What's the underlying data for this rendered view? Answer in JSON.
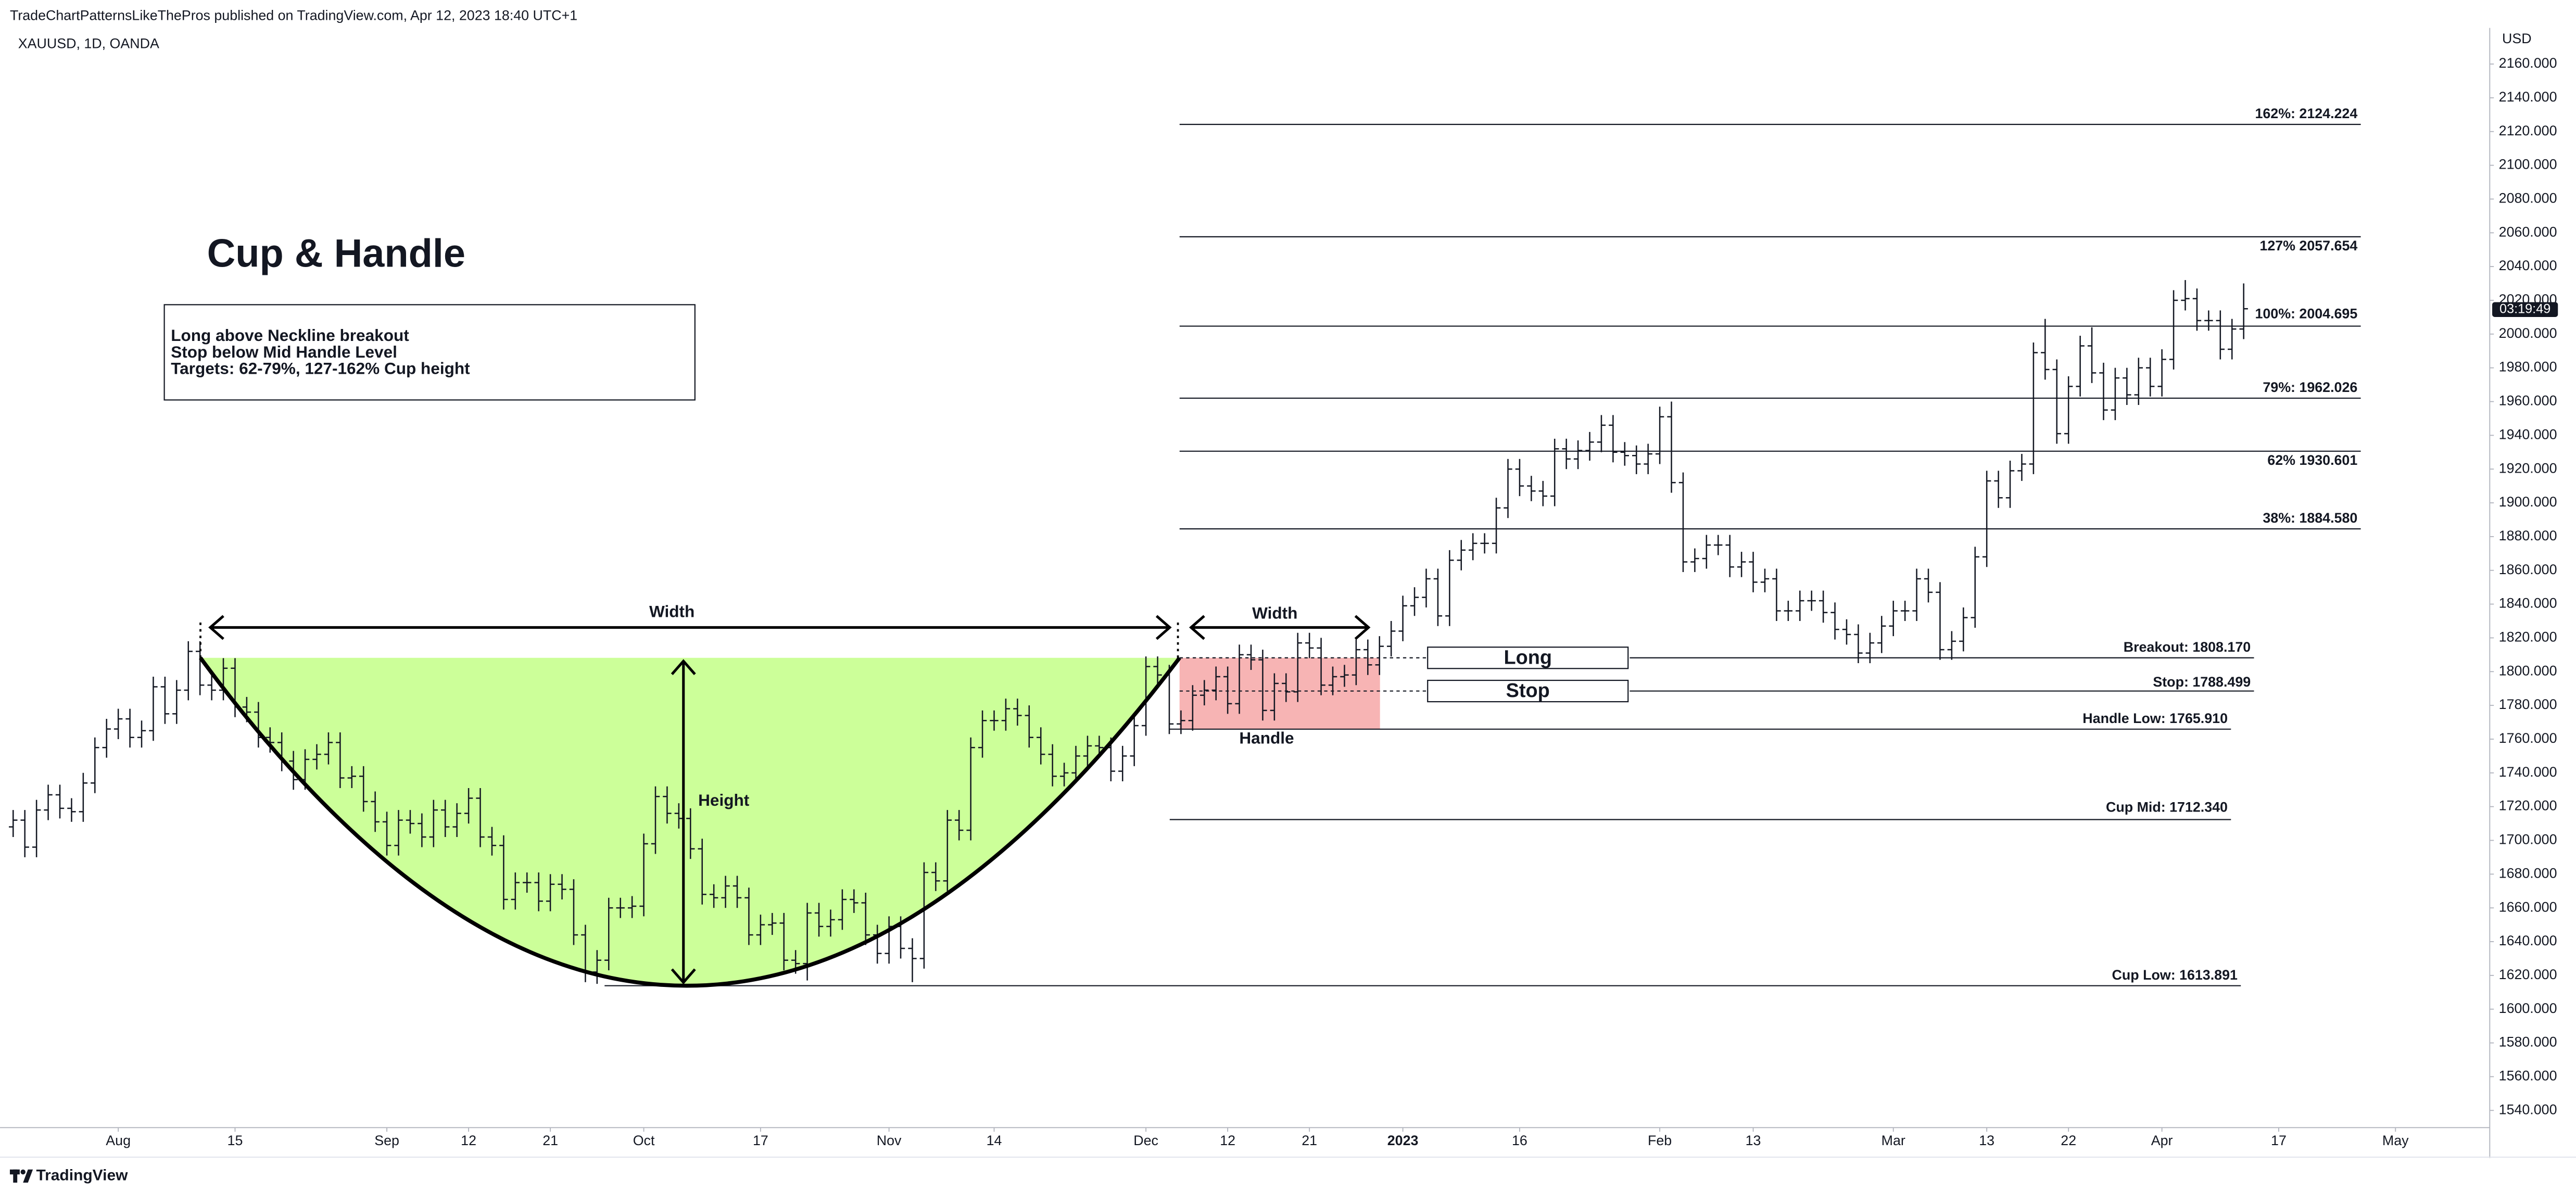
{
  "header": {
    "publisher": "TradeChartPatternsLikeThePros published on TradingView.com, Apr 12, 2023 18:40 UTC+1",
    "symbol": "XAUUSD, 1D, OANDA"
  },
  "footer": "TradingView",
  "chart_data": {
    "type": "ohlc",
    "color": "#131722",
    "grid": false,
    "y_unit": "USD",
    "countdown": "03:19:49",
    "xlim": [
      "2022-07-19",
      "2023-05-11"
    ],
    "ylim": [
      1530.3,
      2181.4
    ],
    "xticks": [
      {
        "value": "2022-08-01",
        "label": "Aug"
      },
      {
        "value": "2022-08-15",
        "label": "15"
      },
      {
        "value": "2022-09-01",
        "label": "Sep"
      },
      {
        "value": "2022-09-12",
        "label": "12"
      },
      {
        "value": "2022-09-21",
        "label": "21"
      },
      {
        "value": "2022-10-03",
        "label": "Oct"
      },
      {
        "value": "2022-10-17",
        "label": "17"
      },
      {
        "value": "2022-11-01",
        "label": "Nov"
      },
      {
        "value": "2022-11-14",
        "label": "14"
      },
      {
        "value": "2022-12-01",
        "label": "Dec"
      },
      {
        "value": "2022-12-12",
        "label": "12"
      },
      {
        "value": "2022-12-21",
        "label": "21"
      },
      {
        "value": "2023-01-02",
        "label": "2023"
      },
      {
        "value": "2023-01-16",
        "label": "16"
      },
      {
        "value": "2023-02-01",
        "label": "Feb"
      },
      {
        "value": "2023-02-13",
        "label": "13"
      },
      {
        "value": "2023-03-01",
        "label": "Mar"
      },
      {
        "value": "2023-03-13",
        "label": "13"
      },
      {
        "value": "2023-03-22",
        "label": "22"
      },
      {
        "value": "2023-04-03",
        "label": "Apr"
      },
      {
        "value": "2023-04-17",
        "label": "17"
      },
      {
        "value": "2023-05-01",
        "label": "May"
      }
    ],
    "yticks": [
      {
        "value": 1540,
        "label": "1540.000"
      },
      {
        "value": 1560,
        "label": "1560.000"
      },
      {
        "value": 1580,
        "label": "1580.000"
      },
      {
        "value": 1600,
        "label": "1600.000"
      },
      {
        "value": 1620,
        "label": "1620.000"
      },
      {
        "value": 1640,
        "label": "1640.000"
      },
      {
        "value": 1660,
        "label": "1660.000"
      },
      {
        "value": 1680,
        "label": "1680.000"
      },
      {
        "value": 1700,
        "label": "1700.000"
      },
      {
        "value": 1720,
        "label": "1720.000"
      },
      {
        "value": 1740,
        "label": "1740.000"
      },
      {
        "value": 1760,
        "label": "1760.000"
      },
      {
        "value": 1780,
        "label": "1780.000"
      },
      {
        "value": 1800,
        "label": "1800.000"
      },
      {
        "value": 1820,
        "label": "1820.000"
      },
      {
        "value": 1840,
        "label": "1840.000"
      },
      {
        "value": 1860,
        "label": "1860.000"
      },
      {
        "value": 1880,
        "label": "1880.000"
      },
      {
        "value": 1900,
        "label": "1900.000"
      },
      {
        "value": 1920,
        "label": "1920.000"
      },
      {
        "value": 1940,
        "label": "1940.000"
      },
      {
        "value": 1960,
        "label": "1960.000"
      },
      {
        "value": 1980,
        "label": "1980.000"
      },
      {
        "value": 2000,
        "label": "2000.000"
      },
      {
        "value": 2020,
        "label": "2020.000"
      },
      {
        "value": 2040,
        "label": "2040.000"
      },
      {
        "value": 2060,
        "label": "2060.000"
      },
      {
        "value": 2080,
        "label": "2080.000"
      },
      {
        "value": 2100,
        "label": "2100.000"
      },
      {
        "value": 2120,
        "label": "2120.000"
      },
      {
        "value": 2140,
        "label": "2140.000"
      },
      {
        "value": 2160,
        "label": "2160.000"
      }
    ],
    "levels": [
      {
        "label": "162%: 2124.224",
        "value": 2124.224
      },
      {
        "label": "127% 2057.654",
        "value": 2057.654
      },
      {
        "label": "100%: 2004.695",
        "value": 2004.695
      },
      {
        "label": "79%: 1962.026",
        "value": 1962.026
      },
      {
        "label": "62% 1930.601",
        "value": 1930.601
      },
      {
        "label": "38%: 1884.580",
        "value": 1884.58
      },
      {
        "label": "Breakout: 1808.170",
        "value": 1808.17
      },
      {
        "label": "Stop: 1788.499",
        "value": 1788.499
      },
      {
        "label": "Handle Low: 1765.910",
        "value": 1765.91
      },
      {
        "label": "Cup Mid: 1712.340",
        "value": 1712.34
      },
      {
        "label": "Cup Low: 1613.891",
        "value": 1613.891
      }
    ],
    "annotations": {
      "title": "Cup & Handle",
      "notes": [
        "Long above Neckline breakout",
        "Stop below Mid Handle Level",
        "Targets: 62-79%, 127-162% Cup height"
      ],
      "cup_width": "Width",
      "handle_width": "Width",
      "height": "Height",
      "handle": "Handle",
      "long": "Long",
      "stop": "Stop"
    },
    "x": [
      "2022-07-19",
      "2022-07-20",
      "2022-07-21",
      "2022-07-22",
      "2022-07-25",
      "2022-07-26",
      "2022-07-27",
      "2022-07-28",
      "2022-07-29",
      "2022-08-01",
      "2022-08-02",
      "2022-08-03",
      "2022-08-04",
      "2022-08-05",
      "2022-08-08",
      "2022-08-09",
      "2022-08-10",
      "2022-08-11",
      "2022-08-12",
      "2022-08-15",
      "2022-08-16",
      "2022-08-17",
      "2022-08-18",
      "2022-08-19",
      "2022-08-22",
      "2022-08-23",
      "2022-08-24",
      "2022-08-25",
      "2022-08-26",
      "2022-08-29",
      "2022-08-30",
      "2022-08-31",
      "2022-09-01",
      "2022-09-02",
      "2022-09-05",
      "2022-09-06",
      "2022-09-07",
      "2022-09-08",
      "2022-09-09",
      "2022-09-12",
      "2022-09-13",
      "2022-09-14",
      "2022-09-15",
      "2022-09-16",
      "2022-09-19",
      "2022-09-20",
      "2022-09-21",
      "2022-09-22",
      "2022-09-23",
      "2022-09-26",
      "2022-09-27",
      "2022-09-28",
      "2022-09-29",
      "2022-09-30",
      "2022-10-03",
      "2022-10-04",
      "2022-10-05",
      "2022-10-06",
      "2022-10-07",
      "2022-10-10",
      "2022-10-11",
      "2022-10-12",
      "2022-10-13",
      "2022-10-14",
      "2022-10-17",
      "2022-10-18",
      "2022-10-19",
      "2022-10-20",
      "2022-10-21",
      "2022-10-24",
      "2022-10-25",
      "2022-10-26",
      "2022-10-27",
      "2022-10-28",
      "2022-10-31",
      "2022-11-01",
      "2022-11-02",
      "2022-11-03",
      "2022-11-04",
      "2022-11-07",
      "2022-11-08",
      "2022-11-09",
      "2022-11-10",
      "2022-11-11",
      "2022-11-14",
      "2022-11-15",
      "2022-11-16",
      "2022-11-17",
      "2022-11-18",
      "2022-11-21",
      "2022-11-22",
      "2022-11-23",
      "2022-11-24",
      "2022-11-25",
      "2022-11-28",
      "2022-11-29",
      "2022-11-30",
      "2022-12-01",
      "2022-12-02",
      "2022-12-05",
      "2022-12-06",
      "2022-12-07",
      "2022-12-08",
      "2022-12-09",
      "2022-12-12",
      "2022-12-13",
      "2022-12-14",
      "2022-12-15",
      "2022-12-16",
      "2022-12-19",
      "2022-12-20",
      "2022-12-21",
      "2022-12-22",
      "2022-12-23",
      "2022-12-26",
      "2022-12-27",
      "2022-12-28",
      "2022-12-29",
      "2022-12-30",
      "2023-01-02",
      "2023-01-03",
      "2023-01-04",
      "2023-01-05",
      "2023-01-06",
      "2023-01-09",
      "2023-01-10",
      "2023-01-11",
      "2023-01-12",
      "2023-01-13",
      "2023-01-16",
      "2023-01-17",
      "2023-01-18",
      "2023-01-19",
      "2023-01-20",
      "2023-01-23",
      "2023-01-24",
      "2023-01-25",
      "2023-01-26",
      "2023-01-27",
      "2023-01-30",
      "2023-01-31",
      "2023-02-01",
      "2023-02-02",
      "2023-02-03",
      "2023-02-06",
      "2023-02-07",
      "2023-02-08",
      "2023-02-09",
      "2023-02-10",
      "2023-02-13",
      "2023-02-14",
      "2023-02-15",
      "2023-02-16",
      "2023-02-17",
      "2023-02-20",
      "2023-02-21",
      "2023-02-22",
      "2023-02-23",
      "2023-02-24",
      "2023-02-27",
      "2023-02-28",
      "2023-03-01",
      "2023-03-02",
      "2023-03-03",
      "2023-03-06",
      "2023-03-07",
      "2023-03-08",
      "2023-03-09",
      "2023-03-10",
      "2023-03-13",
      "2023-03-14",
      "2023-03-15",
      "2023-03-16",
      "2023-03-17",
      "2023-03-20",
      "2023-03-21",
      "2023-03-22",
      "2023-03-23",
      "2023-03-24",
      "2023-03-27",
      "2023-03-28",
      "2023-03-29",
      "2023-03-30",
      "2023-03-31",
      "2023-04-03",
      "2023-04-04",
      "2023-04-05",
      "2023-04-06",
      "2023-04-07",
      "2023-04-10",
      "2023-04-11",
      "2023-04-12"
    ],
    "open": [
      1708,
      1712,
      1696,
      1718,
      1727,
      1719,
      1717,
      1734,
      1755,
      1766,
      1772,
      1761,
      1765,
      1791,
      1775,
      1789,
      1812,
      1792,
      1789,
      1802,
      1779,
      1776,
      1761,
      1758,
      1747,
      1736,
      1748,
      1751,
      1758,
      1737,
      1738,
      1723,
      1711,
      1697,
      1712,
      1710,
      1702,
      1718,
      1708,
      1716,
      1725,
      1702,
      1697,
      1665,
      1675,
      1675,
      1664,
      1674,
      1671,
      1644,
      1622,
      1629,
      1660,
      1660,
      1661,
      1698,
      1726,
      1716,
      1713,
      1695,
      1668,
      1666,
      1673,
      1666,
      1644,
      1650,
      1651,
      1629,
      1627,
      1657,
      1649,
      1653,
      1665,
      1663,
      1644,
      1633,
      1649,
      1636,
      1630,
      1681,
      1676,
      1712,
      1706,
      1755,
      1771,
      1771,
      1778,
      1774,
      1761,
      1751,
      1738,
      1740,
      1750,
      1756,
      1755,
      1741,
      1750,
      1768,
      1803,
      1798,
      1769,
      1771,
      1786,
      1789,
      1797,
      1781,
      1810,
      1807,
      1777,
      1793,
      1788,
      1817,
      1814,
      1792,
      1797,
      1798,
      1813,
      1804,
      1815,
      1824,
      1839,
      1844,
      1855,
      1833,
      1866,
      1872,
      1876,
      1876,
      1897,
      1920,
      1910,
      1907,
      1904,
      1932,
      1926,
      1931,
      1936,
      1946,
      1930,
      1928,
      1923,
      1929,
      1951,
      1912,
      1865,
      1867,
      1875,
      1875,
      1862,
      1865,
      1853,
      1855,
      1836,
      1836,
      1842,
      1842,
      1835,
      1825,
      1822,
      1811,
      1817,
      1827,
      1836,
      1836,
      1855,
      1847,
      1813,
      1818,
      1832,
      1868,
      1913,
      1903,
      1919,
      1923,
      1989,
      1979,
      1941,
      1969,
      1993,
      1977,
      1955,
      1974,
      1964,
      1980,
      1969,
      1985,
      2020,
      2021,
      2008,
      2008,
      1991,
      2003
    ],
    "high": [
      1718,
      1718,
      1724,
      1733,
      1733,
      1725,
      1740,
      1761,
      1772,
      1778,
      1778,
      1771,
      1797,
      1797,
      1795,
      1818,
      1818,
      1798,
      1808,
      1808,
      1785,
      1782,
      1767,
      1764,
      1753,
      1754,
      1757,
      1764,
      1764,
      1744,
      1744,
      1729,
      1717,
      1718,
      1718,
      1716,
      1724,
      1724,
      1722,
      1731,
      1731,
      1708,
      1703,
      1681,
      1681,
      1681,
      1680,
      1680,
      1677,
      1650,
      1635,
      1666,
      1666,
      1667,
      1704,
      1732,
      1732,
      1722,
      1719,
      1701,
      1674,
      1679,
      1679,
      1672,
      1656,
      1657,
      1657,
      1635,
      1663,
      1663,
      1659,
      1671,
      1671,
      1669,
      1650,
      1655,
      1655,
      1642,
      1687,
      1687,
      1718,
      1718,
      1761,
      1777,
      1777,
      1784,
      1784,
      1780,
      1767,
      1757,
      1746,
      1756,
      1762,
      1762,
      1761,
      1756,
      1774,
      1809,
      1809,
      1804,
      1777,
      1792,
      1795,
      1803,
      1803,
      1816,
      1816,
      1813,
      1799,
      1799,
      1823,
      1823,
      1820,
      1803,
      1804,
      1819,
      1819,
      1821,
      1830,
      1845,
      1850,
      1861,
      1861,
      1872,
      1878,
      1882,
      1882,
      1903,
      1926,
      1926,
      1916,
      1913,
      1938,
      1938,
      1937,
      1942,
      1952,
      1952,
      1936,
      1934,
      1935,
      1957,
      1960,
      1918,
      1873,
      1881,
      1881,
      1881,
      1871,
      1871,
      1861,
      1861,
      1842,
      1848,
      1848,
      1848,
      1841,
      1831,
      1828,
      1823,
      1833,
      1842,
      1842,
      1861,
      1861,
      1853,
      1824,
      1838,
      1874,
      1919,
      1919,
      1925,
      1929,
      1995,
      2009,
      1985,
      1975,
      1999,
      2004,
      1983,
      1980,
      1980,
      1986,
      1986,
      1991,
      2026,
      2032,
      2027,
      2014,
      2014,
      2009,
      2030
    ],
    "low": [
      1702,
      1690,
      1690,
      1712,
      1713,
      1711,
      1711,
      1728,
      1749,
      1760,
      1755,
      1755,
      1759,
      1769,
      1769,
      1783,
      1786,
      1783,
      1783,
      1773,
      1770,
      1755,
      1752,
      1741,
      1730,
      1730,
      1742,
      1745,
      1731,
      1731,
      1717,
      1705,
      1691,
      1691,
      1704,
      1696,
      1696,
      1702,
      1702,
      1710,
      1696,
      1691,
      1659,
      1659,
      1669,
      1658,
      1658,
      1665,
      1638,
      1616,
      1615,
      1623,
      1654,
      1654,
      1655,
      1692,
      1710,
      1707,
      1689,
      1662,
      1660,
      1660,
      1660,
      1638,
      1638,
      1644,
      1623,
      1621,
      1617,
      1643,
      1643,
      1647,
      1657,
      1638,
      1627,
      1627,
      1630,
      1616,
      1624,
      1670,
      1670,
      1700,
      1700,
      1749,
      1765,
      1765,
      1768,
      1755,
      1745,
      1732,
      1732,
      1734,
      1744,
      1749,
      1735,
      1735,
      1744,
      1762,
      1792,
      1763,
      1763,
      1765,
      1780,
      1783,
      1775,
      1775,
      1801,
      1771,
      1771,
      1782,
      1782,
      1808,
      1786,
      1786,
      1791,
      1792,
      1798,
      1798,
      1809,
      1818,
      1833,
      1838,
      1827,
      1827,
      1860,
      1866,
      1870,
      1870,
      1891,
      1904,
      1901,
      1898,
      1898,
      1920,
      1920,
      1925,
      1930,
      1924,
      1922,
      1917,
      1917,
      1923,
      1906,
      1859,
      1859,
      1861,
      1869,
      1856,
      1856,
      1847,
      1847,
      1830,
      1830,
      1830,
      1836,
      1829,
      1819,
      1816,
      1805,
      1805,
      1811,
      1821,
      1830,
      1830,
      1841,
      1807,
      1807,
      1812,
      1826,
      1862,
      1897,
      1897,
      1913,
      1917,
      1973,
      1935,
      1935,
      1963,
      1971,
      1949,
      1949,
      1958,
      1958,
      1963,
      1963,
      1979,
      2014,
      2002,
      2002,
      1985,
      1985,
      1997
    ],
    "close": [
      1712,
      1696,
      1718,
      1727,
      1719,
      1717,
      1734,
      1755,
      1766,
      1772,
      1761,
      1765,
      1791,
      1775,
      1789,
      1812,
      1792,
      1789,
      1802,
      1779,
      1776,
      1761,
      1758,
      1747,
      1736,
      1748,
      1751,
      1758,
      1737,
      1738,
      1723,
      1711,
      1697,
      1712,
      1710,
      1702,
      1718,
      1708,
      1716,
      1725,
      1702,
      1697,
      1665,
      1675,
      1675,
      1664,
      1674,
      1671,
      1644,
      1622,
      1629,
      1660,
      1660,
      1661,
      1698,
      1726,
      1716,
      1713,
      1695,
      1668,
      1666,
      1673,
      1666,
      1644,
      1650,
      1651,
      1629,
      1627,
      1657,
      1649,
      1653,
      1665,
      1663,
      1644,
      1633,
      1649,
      1636,
      1630,
      1681,
      1676,
      1712,
      1706,
      1755,
      1771,
      1771,
      1778,
      1774,
      1761,
      1751,
      1738,
      1740,
      1750,
      1756,
      1755,
      1741,
      1750,
      1768,
      1803,
      1798,
      1769,
      1771,
      1786,
      1789,
      1797,
      1781,
      1810,
      1807,
      1777,
      1793,
      1788,
      1817,
      1814,
      1792,
      1797,
      1798,
      1813,
      1804,
      1815,
      1824,
      1839,
      1844,
      1855,
      1833,
      1866,
      1872,
      1876,
      1876,
      1897,
      1920,
      1910,
      1907,
      1904,
      1932,
      1926,
      1931,
      1936,
      1946,
      1930,
      1928,
      1923,
      1929,
      1951,
      1912,
      1865,
      1867,
      1875,
      1875,
      1862,
      1865,
      1853,
      1855,
      1836,
      1836,
      1842,
      1842,
      1835,
      1825,
      1822,
      1811,
      1817,
      1827,
      1836,
      1836,
      1855,
      1847,
      1813,
      1818,
      1832,
      1868,
      1913,
      1903,
      1919,
      1923,
      1989,
      1979,
      1941,
      1969,
      1993,
      1977,
      1955,
      1974,
      1964,
      1980,
      1969,
      1985,
      2020,
      2021,
      2008,
      2008,
      1991,
      2003,
      2015
    ]
  }
}
